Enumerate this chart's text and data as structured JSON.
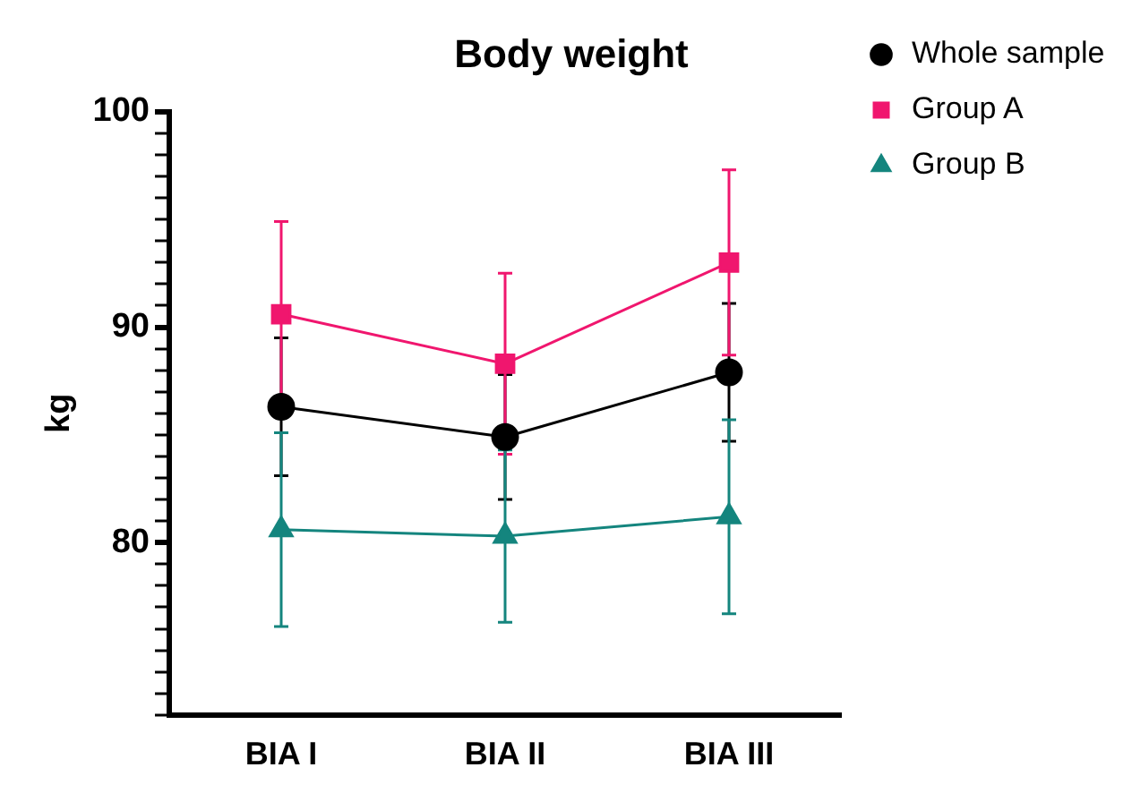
{
  "chart_data": {
    "type": "line",
    "title": "Body weight",
    "ylabel": "kg",
    "categories": [
      "BIA I",
      "BIA II",
      "BIA III"
    ],
    "series": [
      {
        "name": "Whole sample",
        "color": "#000000",
        "marker": "circle",
        "values": [
          86.3,
          84.9,
          87.9
        ],
        "errors": [
          3.2,
          2.9,
          3.2
        ]
      },
      {
        "name": "Group A",
        "color": "#f0166e",
        "marker": "square",
        "values": [
          90.6,
          88.3,
          93.0
        ],
        "errors": [
          4.3,
          4.2,
          4.3
        ]
      },
      {
        "name": "Group B",
        "color": "#14857e",
        "marker": "triangle",
        "values": [
          80.6,
          80.3,
          81.2
        ],
        "errors": [
          4.5,
          4.0,
          4.5
        ]
      }
    ],
    "ylim": [
      72,
      100
    ],
    "yticks": [
      {
        "value": 72,
        "label": null
      },
      {
        "value": 73,
        "label": null
      },
      {
        "value": 74,
        "label": null
      },
      {
        "value": 75,
        "label": null
      },
      {
        "value": 76,
        "label": null
      },
      {
        "value": 77,
        "label": null
      },
      {
        "value": 78,
        "label": null
      },
      {
        "value": 79,
        "label": null
      },
      80,
      {
        "value": 81,
        "label": null
      },
      {
        "value": 82,
        "label": null
      },
      {
        "value": 83,
        "label": null
      },
      {
        "value": 84,
        "label": null
      },
      {
        "value": 85,
        "label": null
      },
      {
        "value": 86,
        "label": null
      },
      {
        "value": 87,
        "label": null
      },
      {
        "value": 88,
        "label": null
      },
      {
        "value": 89,
        "label": null
      },
      90,
      {
        "value": 91,
        "label": null
      },
      {
        "value": 92,
        "label": null
      },
      {
        "value": 93,
        "label": null
      },
      {
        "value": 94,
        "label": null
      },
      {
        "value": 95,
        "label": null
      },
      {
        "value": 96,
        "label": null
      },
      {
        "value": 97,
        "label": null
      },
      {
        "value": 98,
        "label": null
      },
      {
        "value": 99,
        "label": null
      },
      100
    ],
    "grid": false,
    "legend": "top right",
    "line_style": "solid"
  }
}
